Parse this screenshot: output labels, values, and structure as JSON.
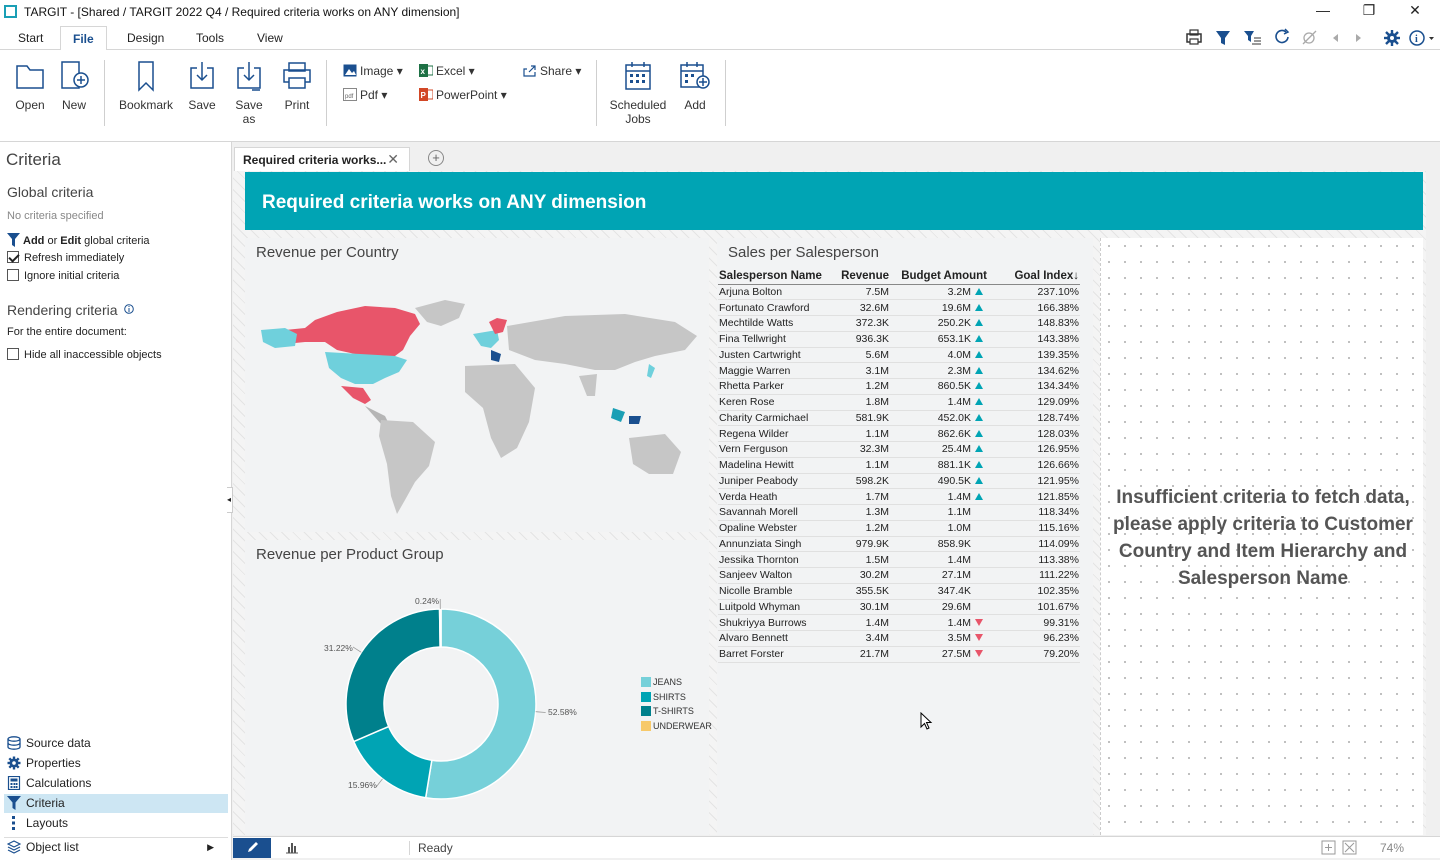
{
  "app": {
    "title": "TARGIT - [Shared / TARGIT 2022 Q4 / Required criteria works on ANY dimension]"
  },
  "menu": {
    "tabs": [
      "Start",
      "File",
      "Design",
      "Tools",
      "View"
    ],
    "active": "File"
  },
  "ribbon": {
    "open": "Open",
    "new": "New",
    "bookmark": "Bookmark",
    "save": "Save",
    "save_as": "Save as",
    "print": "Print",
    "image": "Image",
    "pdf": "Pdf",
    "excel": "Excel",
    "powerpoint": "PowerPoint",
    "share": "Share",
    "scheduled_jobs_1": "Scheduled",
    "scheduled_jobs_2": "Jobs",
    "add": "Add"
  },
  "sidebar": {
    "title": "Criteria",
    "global_title": "Global criteria",
    "no_criteria": "No criteria specified",
    "add_edit_1": "Add",
    "add_edit_or": " or ",
    "add_edit_2": "Edit",
    "add_edit_3": " global criteria",
    "refresh": "Refresh immediately",
    "refresh_checked": true,
    "ignore": "Ignore initial criteria",
    "ignore_checked": false,
    "rendering_title": "Rendering criteria",
    "for_entire": "For the entire document:",
    "hide_inaccessible": "Hide all inaccessible objects",
    "hide_checked": false,
    "bottom_items": [
      {
        "label": "Source data",
        "icon": "database-icon"
      },
      {
        "label": "Properties",
        "icon": "gear-icon"
      },
      {
        "label": "Calculations",
        "icon": "calculator-icon"
      },
      {
        "label": "Criteria",
        "icon": "filter-icon",
        "selected": true
      },
      {
        "label": "Layouts",
        "icon": "layouts-icon"
      },
      {
        "label": "Object list",
        "icon": "stack-icon"
      }
    ]
  },
  "document": {
    "tab_label": "Required criteria works...",
    "header": "Required criteria works on ANY dimension",
    "map_title": "Revenue per Country",
    "donut_title": "Revenue per Product Group",
    "sales_title": "Sales per Salesperson",
    "insufficient": "Insufficient criteria to fetch data, please apply criteria to Customer Country and Item Hierarchy and Salesperson Name"
  },
  "sales_table": {
    "headers": [
      "Salesperson Name",
      "Revenue",
      "Budget Amount",
      "Goal Index↓"
    ],
    "rows": [
      [
        "Arjuna Bolton",
        "7.5M",
        "3.2M",
        "up",
        "237.10%"
      ],
      [
        "Fortunato Crawford",
        "32.6M",
        "19.6M",
        "up",
        "166.38%"
      ],
      [
        "Mechtilde Watts",
        "372.3K",
        "250.2K",
        "up",
        "148.83%"
      ],
      [
        "Fina Tellwright",
        "936.3K",
        "653.1K",
        "up",
        "143.38%"
      ],
      [
        "Justen Cartwright",
        "5.6M",
        "4.0M",
        "up",
        "139.35%"
      ],
      [
        "Maggie Warren",
        "3.1M",
        "2.3M",
        "up",
        "134.62%"
      ],
      [
        "Rhetta Parker",
        "1.2M",
        "860.5K",
        "up",
        "134.34%"
      ],
      [
        "Keren Rose",
        "1.8M",
        "1.4M",
        "up",
        "129.09%"
      ],
      [
        "Charity Carmichael",
        "581.9K",
        "452.0K",
        "up",
        "128.74%"
      ],
      [
        "Regena Wilder",
        "1.1M",
        "862.6K",
        "up",
        "128.03%"
      ],
      [
        "Vern Ferguson",
        "32.3M",
        "25.4M",
        "up",
        "126.95%"
      ],
      [
        "Madelina Hewitt",
        "1.1M",
        "881.1K",
        "up",
        "126.66%"
      ],
      [
        "Juniper Peabody",
        "598.2K",
        "490.5K",
        "up",
        "121.95%"
      ],
      [
        "Verda Heath",
        "1.7M",
        "1.4M",
        "up",
        "121.85%"
      ],
      [
        "Savannah Morell",
        "1.3M",
        "1.1M",
        "",
        "118.34%"
      ],
      [
        "Opaline Webster",
        "1.2M",
        "1.0M",
        "",
        "115.16%"
      ],
      [
        "Annunziata Singh",
        "979.9K",
        "858.9K",
        "",
        "114.09%"
      ],
      [
        "Jessika Thornton",
        "1.5M",
        "1.4M",
        "",
        "113.38%"
      ],
      [
        "Sanjeev Walton",
        "30.2M",
        "27.1M",
        "",
        "111.22%"
      ],
      [
        "Nicolle Bramble",
        "355.5K",
        "347.4K",
        "",
        "102.35%"
      ],
      [
        "Luitpold Whyman",
        "30.1M",
        "29.6M",
        "",
        "101.67%"
      ],
      [
        "Shukriyya Burrows",
        "1.4M",
        "1.4M",
        "down",
        "99.31%"
      ],
      [
        "Alvaro Bennett",
        "3.4M",
        "3.5M",
        "down",
        "96.23%"
      ],
      [
        "Barret Forster",
        "21.7M",
        "27.5M",
        "down",
        "79.20%"
      ]
    ]
  },
  "chart_data": {
    "type": "pie",
    "donut": true,
    "categories": [
      "JEANS",
      "SHIRTS",
      "T-SHIRTS",
      "UNDERWEAR"
    ],
    "values": [
      52.58,
      15.96,
      31.22,
      0.24
    ],
    "labels": [
      "52.58%",
      "15.96%",
      "31.22%",
      "0.24%"
    ],
    "colors": [
      "#76d0d9",
      "#00a4b4",
      "#00808c",
      "#f7c96a"
    ],
    "legend": "right"
  },
  "status": {
    "text": "Ready",
    "zoom": "74%"
  },
  "colors": {
    "accent": "#00a4b4",
    "highlight_red": "#e8556a",
    "map_blue": "#6fd0dc"
  }
}
